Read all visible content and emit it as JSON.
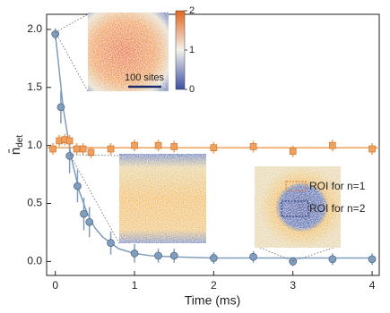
{
  "chart_data": {
    "type": "scatter",
    "xlabel": "Time (ms)",
    "ylabel": {
      "main": "n̄",
      "sub": "det"
    },
    "xlim": [
      -0.11,
      4.09
    ],
    "ylim": [
      -0.12,
      2.13
    ],
    "xticks": [
      0,
      1,
      2,
      3,
      4
    ],
    "yticks": [
      {
        "value": 0,
        "label": "0.0"
      },
      {
        "value": 0.5,
        "label": "0.5"
      },
      {
        "value": 1,
        "label": "1.0"
      },
      {
        "value": 1.5,
        "label": "1.5"
      },
      {
        "value": 2,
        "label": "2.0"
      }
    ],
    "series": [
      {
        "color": "#7f9dbd",
        "marker": "circle",
        "x": [
          0,
          0.07,
          0.18,
          0.28,
          0.36,
          0.43,
          0.7,
          1.0,
          1.3,
          1.5,
          2.0,
          2.5,
          3.0,
          3.5,
          4.0
        ],
        "values": [
          1.96,
          1.33,
          0.91,
          0.65,
          0.41,
          0.34,
          0.16,
          0.07,
          0.05,
          0.05,
          0.03,
          0.04,
          0.0,
          0.02,
          0.02
        ],
        "errors": [
          0.05,
          0.14,
          0.15,
          0.14,
          0.14,
          0.13,
          0.1,
          0.08,
          0.06,
          0.06,
          0.05,
          0.05,
          0.04,
          0.05,
          0.05
        ]
      },
      {
        "color": "#f0a05a",
        "marker": "square",
        "x": [
          -0.03,
          0.05,
          0.12,
          0.18,
          0.27,
          0.35,
          0.45,
          0.7,
          1.0,
          1.3,
          1.5,
          2.0,
          2.5,
          3.0,
          3.5,
          4.0
        ],
        "values": [
          0.97,
          1.04,
          1.05,
          1.04,
          0.97,
          0.97,
          0.94,
          0.97,
          1.0,
          1.0,
          0.99,
          0.98,
          0.99,
          0.95,
          1.0,
          0.97
        ],
        "errors": [
          0.05,
          0.05,
          0.05,
          0.05,
          0.05,
          0.05,
          0.05,
          0.05,
          0.05,
          0.05,
          0.05,
          0.05,
          0.05,
          0.05,
          0.05,
          0.05
        ]
      }
    ],
    "fits": [
      {
        "color": "#7f9dbd",
        "x": [
          0,
          0.1,
          0.2,
          0.3,
          0.4,
          0.5,
          0.6,
          0.8,
          1.0,
          1.2,
          1.5,
          2.0,
          2.5,
          3.0,
          3.5,
          4.0
        ],
        "values": [
          1.96,
          1.32,
          0.9,
          0.61,
          0.42,
          0.29,
          0.21,
          0.11,
          0.07,
          0.05,
          0.04,
          0.03,
          0.03,
          0.03,
          0.03,
          0.03
        ]
      },
      {
        "color": "#f0a05a",
        "x": [
          -0.1,
          4.09
        ],
        "values": [
          0.98,
          0.98
        ]
      }
    ],
    "annotations": [
      "100 sites",
      "ROI for n=1",
      "ROI for n=2"
    ],
    "colorbar": {
      "lim": [
        0,
        2
      ],
      "ticks": [
        0,
        1,
        2
      ]
    }
  }
}
